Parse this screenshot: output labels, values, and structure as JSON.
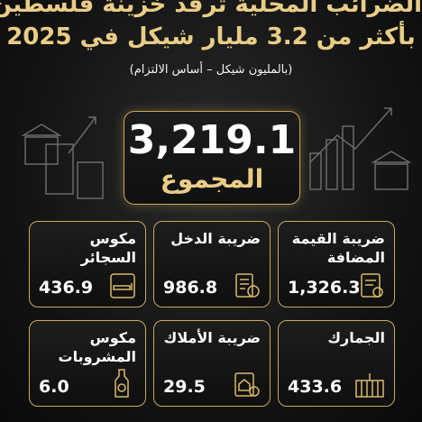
{
  "header": {
    "title_line_1": "الضرائب المحلية ترفد خزينة فلسطين",
    "title_line_2": "بأكثر من 3.2 مليار شيكل في 2025",
    "subtitle": "(بالمليون شيكل – أساس الالتزام)"
  },
  "total": {
    "value": "3,219.1",
    "label": "المجموع"
  },
  "cards": [
    {
      "label": "ضريبة القيمة المضافة",
      "value": "1,326.3"
    },
    {
      "label": "ضريبة الدخل",
      "value": "986.8"
    },
    {
      "label": "مكوس السجائر",
      "value": "436.9"
    },
    {
      "label": "الجمارك",
      "value": "433.6"
    },
    {
      "label": "ضريبة الأملاك",
      "value": "29.5"
    },
    {
      "label": "مكوس المشروبات",
      "value": "6.0"
    }
  ]
}
